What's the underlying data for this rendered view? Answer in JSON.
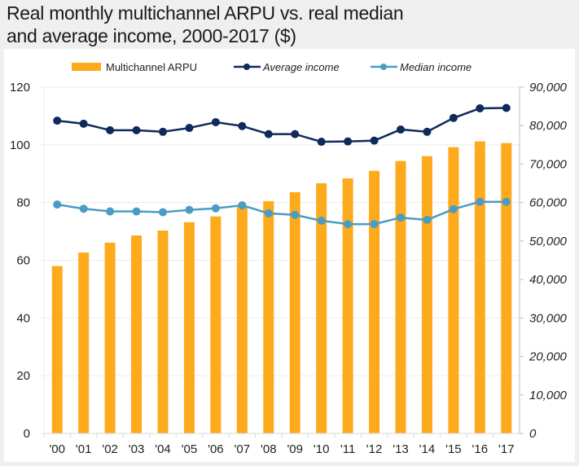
{
  "title_line1": "Real monthly multichannel ARPU vs. real median",
  "title_line2": "and average income, 2000-2017 ($)",
  "colors": {
    "bar": "#fdaa1c",
    "average": "#0e2a5c",
    "median": "#4a9cc5",
    "grid": "#ececec",
    "axis": "#bfbfbf"
  },
  "chart_data": {
    "type": "bar",
    "title": "Real monthly multichannel ARPU vs. real median and average income, 2000-2017 ($)",
    "categories": [
      "'00",
      "'01",
      "'02",
      "'03",
      "'04",
      "'05",
      "'06",
      "'07",
      "'08",
      "'09",
      "'10",
      "'11",
      "'12",
      "'13",
      "'14",
      "'15",
      "'16",
      "'17"
    ],
    "series": [
      {
        "name": "Multichannel ARPU",
        "type": "bar",
        "axis": "left",
        "values": [
          58.0,
          62.7,
          66.1,
          68.6,
          70.3,
          73.2,
          75.2,
          78.5,
          80.5,
          83.6,
          86.7,
          88.4,
          91.0,
          94.4,
          96.1,
          99.2,
          101.2,
          100.6
        ]
      },
      {
        "name": "Average income",
        "type": "line",
        "axis": "right",
        "values": [
          81300,
          80500,
          78800,
          78800,
          78400,
          79400,
          80900,
          79900,
          77800,
          77800,
          75800,
          75900,
          76100,
          79000,
          78400,
          82000,
          84500,
          84600
        ]
      },
      {
        "name": "Median income",
        "type": "line",
        "axis": "right",
        "values": [
          59500,
          58400,
          57700,
          57700,
          57500,
          58100,
          58500,
          59300,
          57200,
          56800,
          55300,
          54400,
          54400,
          56100,
          55500,
          58300,
          60200,
          60200
        ]
      }
    ],
    "y_left": {
      "range": [
        0,
        120
      ],
      "ticks": [
        "0",
        "20",
        "40",
        "60",
        "80",
        "100",
        "120"
      ]
    },
    "y_right": {
      "range": [
        0,
        90000
      ],
      "ticks": [
        "0",
        "10,000",
        "20,000",
        "30,000",
        "40,000",
        "50,000",
        "60,000",
        "70,000",
        "80,000",
        "90,000"
      ]
    },
    "legend": {
      "position": "top",
      "entries": [
        "Multichannel ARPU",
        "Average income",
        "Median income"
      ]
    },
    "grid": true,
    "xlabel": "",
    "ylabel": ""
  }
}
